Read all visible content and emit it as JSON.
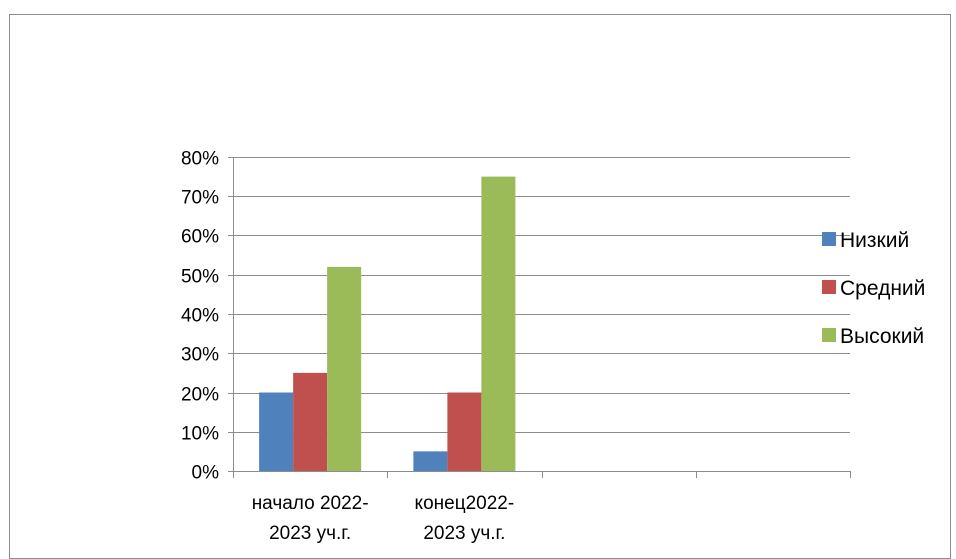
{
  "chart_data": {
    "type": "bar",
    "title": "",
    "xlabel": "",
    "ylabel": "",
    "ylim": [
      0,
      0.8
    ],
    "ytick_step": 0.1,
    "yticks": [
      "0%",
      "10%",
      "20%",
      "30%",
      "40%",
      "50%",
      "60%",
      "70%",
      "80%"
    ],
    "grid": true,
    "legend_position": "right",
    "category_slots": 4,
    "categories": [
      [
        "начало 2022-",
        "2023 уч.г."
      ],
      [
        "конец2022-",
        "2023 уч.г."
      ]
    ],
    "series": [
      {
        "name": "Низкий",
        "color": "#4f81bd",
        "values": [
          0.2,
          0.05
        ]
      },
      {
        "name": "Средний",
        "color": "#c0504d",
        "values": [
          0.25,
          0.2
        ]
      },
      {
        "name": "Высокий",
        "color": "#9bbb59",
        "values": [
          0.52,
          0.75
        ]
      }
    ]
  }
}
